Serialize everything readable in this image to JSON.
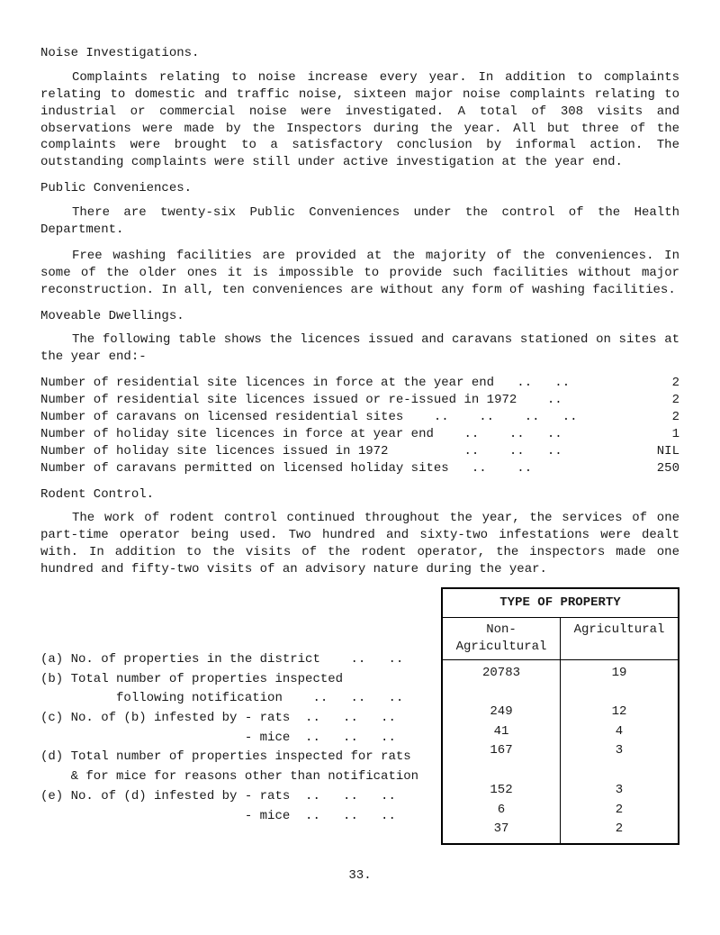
{
  "sections": {
    "noise": {
      "title": "Noise Investigations.",
      "para": "Complaints relating to noise increase every year.   In addition to complaints relating to domestic and traffic noise, sixteen major noise complaints relating to industrial or commercial noise were investigated. A total of 308 visits and observations were made by the Inspectors during the year.   All but three of the complaints were brought to a satisfactory conclusion by informal action.   The outstanding complaints were still under active investigation at the year end."
    },
    "pubconv": {
      "title": "Public Conveniences.",
      "para1": "There are twenty-six Public Conveniences under the control of the Health Department.",
      "para2": "Free washing facilities are provided at the majority of the conveniences. In some of the older ones it is impossible to provide such facilities without major reconstruction.   In all, ten conveniences are without any form of washing facilities."
    },
    "moveable": {
      "title": "Moveable Dwellings.",
      "para": "The following table shows the licences issued and caravans stationed on sites at the year end:-",
      "rows": [
        {
          "label": "Number of residential site licences in force at the year end   ..   ..",
          "val": "2"
        },
        {
          "label": "Number of residential site licences issued or re-issued in 1972    ..",
          "val": "2"
        },
        {
          "label": "Number of caravans on licensed residential sites    ..    ..    ..   ..",
          "val": "2"
        },
        {
          "label": "Number of holiday site licences in force at year end    ..    ..   ..",
          "val": "1"
        },
        {
          "label": "Number of holiday site licences issued in 1972          ..    ..   ..",
          "val": "NIL"
        },
        {
          "label": "Number of caravans permitted on licensed holiday sites   ..    ..",
          "val": "250"
        }
      ]
    },
    "rodent": {
      "title": "Rodent Control.",
      "para": "The work of rodent control continued throughout the year, the services of one part-time operator being used.   Two hundred and sixty-two infestations were dealt with.   In addition to the visits of the rodent operator, the inspectors made one hundred and fifty-two visits of an advisory nature during the year.",
      "left_lines": [
        "(a) No. of properties in the district    ..   ..",
        "(b) Total number of properties inspected",
        "          following notification    ..   ..   ..",
        "(c) No. of (b) infested by - rats  ..   ..   ..",
        "                           - mice  ..   ..   ..",
        "(d) Total number of properties inspected for rats",
        "    & for mice for reasons other than notification",
        "(e) No. of (d) infested by - rats  ..   ..   ..",
        "                           - mice  ..   ..   .."
      ],
      "table": {
        "header": "TYPE OF PROPERTY",
        "col1": "Non-\nAgricultural",
        "col2": "Agricultural",
        "rows": [
          [
            "20783",
            "19"
          ],
          [
            "",
            ""
          ],
          [
            "249",
            "12"
          ],
          [
            "41",
            "4"
          ],
          [
            "167",
            "3"
          ],
          [
            "",
            ""
          ],
          [
            "152",
            "3"
          ],
          [
            "6",
            "2"
          ],
          [
            "37",
            "2"
          ]
        ]
      }
    }
  },
  "pagenum": "33."
}
